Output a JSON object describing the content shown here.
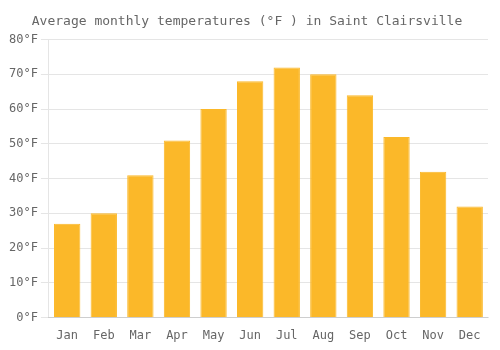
{
  "chart_data": {
    "type": "bar",
    "title": "Average monthly temperatures (°F ) in Saint Clairsville",
    "categories": [
      "Jan",
      "Feb",
      "Mar",
      "Apr",
      "May",
      "Jun",
      "Jul",
      "Aug",
      "Sep",
      "Oct",
      "Nov",
      "Dec"
    ],
    "values": [
      27,
      30,
      41,
      51,
      60,
      68,
      72,
      70,
      64,
      52,
      42,
      32
    ],
    "color": "#FBB829",
    "ylim": [
      0,
      80
    ],
    "yticks": [
      {
        "value": 0,
        "label": "0°F"
      },
      {
        "value": 10,
        "label": "10°F"
      },
      {
        "value": 20,
        "label": "20°F"
      },
      {
        "value": 30,
        "label": "30°F"
      },
      {
        "value": 40,
        "label": "40°F"
      },
      {
        "value": 50,
        "label": "50°F"
      },
      {
        "value": 60,
        "label": "60°F"
      },
      {
        "value": 70,
        "label": "70°F"
      },
      {
        "value": 80,
        "label": "80°F"
      }
    ],
    "grid": true
  }
}
